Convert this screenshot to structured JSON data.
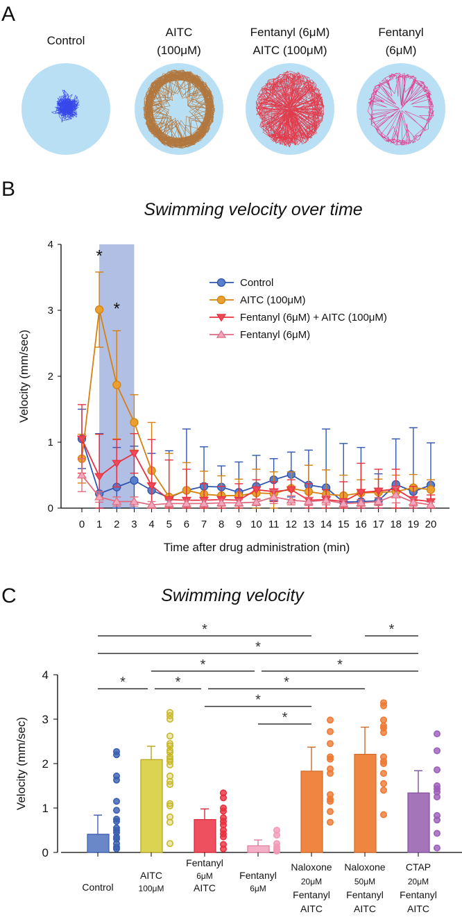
{
  "panels": {
    "a": "A",
    "b": "B",
    "c": "C"
  },
  "panel_a": {
    "arenas": [
      {
        "title": [
          "Control"
        ],
        "color": "#1f2ee8"
      },
      {
        "title": [
          "AITC",
          "(100μM)"
        ],
        "color": "#b0651e"
      },
      {
        "title": [
          "Fentanyl (6μM)",
          "AITC (100μM)"
        ],
        "color": "#e8202e"
      },
      {
        "title": [
          "Fentanyl",
          "(6μM)"
        ],
        "color": "#e8207a"
      }
    ],
    "arena_fill": "#b9dff4"
  },
  "chart_data": [
    {
      "type": "line",
      "title": "Swimming velocity over time",
      "xlabel": "Time after drug administration (min)",
      "ylabel": "Velocity (mm/sec)",
      "x": [
        0,
        1,
        2,
        3,
        4,
        5,
        6,
        7,
        8,
        9,
        10,
        11,
        12,
        13,
        14,
        15,
        16,
        17,
        18,
        19,
        20
      ],
      "xlim": [
        0,
        20
      ],
      "ylim": [
        0,
        4
      ],
      "yticks": [
        0,
        1,
        2,
        3,
        4
      ],
      "shaded_region": {
        "x": [
          1,
          3
        ],
        "color": "#a9b8e2"
      },
      "annotations": [
        {
          "x": 1,
          "y": 3.85,
          "text": "*"
        },
        {
          "x": 2,
          "y": 3.05,
          "text": "*"
        }
      ],
      "legend": "top-right",
      "series": [
        {
          "name": "Control",
          "color": "#2f55b0",
          "fill": "#5a7fcc",
          "marker": "circle",
          "values": [
            1.05,
            0.22,
            0.32,
            0.42,
            0.27,
            0.16,
            0.27,
            0.33,
            0.32,
            0.24,
            0.33,
            0.43,
            0.51,
            0.35,
            0.31,
            0.09,
            0.1,
            0.11,
            0.36,
            0.25,
            0.35
          ],
          "error": [
            0.45,
            0.91,
            0.6,
            0.52,
            0.56,
            0.71,
            0.93,
            0.6,
            0.32,
            0.46,
            0.47,
            0.32,
            0.34,
            0.53,
            0.89,
            0.89,
            0.82,
            0.41,
            0.69,
            0.97,
            0.64
          ]
        },
        {
          "name": "AITC (100μM)",
          "color": "#d5800f",
          "fill": "#e8a030",
          "marker": "circle",
          "values": [
            0.75,
            3.01,
            1.87,
            1.3,
            0.57,
            0.17,
            0.27,
            0.21,
            0.19,
            0.19,
            0.23,
            0.22,
            0.3,
            0.25,
            0.21,
            0.19,
            0.23,
            0.24,
            0.25,
            0.31,
            0.28
          ],
          "error": [
            0.37,
            0.57,
            0.82,
            0.42,
            0.73,
            0.66,
            0.42,
            0.35,
            0.3,
            0.25,
            0.36,
            0.33,
            0.25,
            0.4,
            0.37,
            0.31,
            0.2,
            0.2,
            0.25,
            0.2,
            0.15
          ]
        },
        {
          "name": "Fentanyl (6μM) + AITC (100μM)",
          "color": "#e8303f",
          "fill": "#ee4a56",
          "marker": "triangle-down",
          "values": [
            1.05,
            0.48,
            0.68,
            0.83,
            0.34,
            0.13,
            0.12,
            0.12,
            0.13,
            0.12,
            0.28,
            0.25,
            0.28,
            0.12,
            0.13,
            0.1,
            0.24,
            0.26,
            0.29,
            0.13,
            0.1
          ],
          "error": [
            0.52,
            0.64,
            0.36,
            0.3,
            0.7,
            0.6,
            0.47,
            0.25,
            0.2,
            0.25,
            0.15,
            0.15,
            0.15,
            0.25,
            0.15,
            0.3,
            0.44,
            0.33,
            0.3,
            0.2,
            0.1
          ]
        },
        {
          "name": "Fentanyl (6μM)",
          "color": "#e06a7e",
          "fill": "#f2a6bc",
          "marker": "triangle-up",
          "values": [
            0.5,
            0.17,
            0.1,
            0.1,
            0.05,
            0.07,
            0.07,
            0.07,
            0.08,
            0.08,
            0.09,
            0.17,
            0.12,
            0.1,
            0.12,
            0.07,
            0.08,
            0.1,
            0.2,
            0.09,
            0.05
          ],
          "error": [
            0.25,
            0.08,
            0.07,
            0.07,
            0.05,
            0.05,
            0.05,
            0.05,
            0.05,
            0.05,
            0.05,
            0.1,
            0.07,
            0.06,
            0.07,
            0.05,
            0.05,
            0.06,
            0.12,
            0.06,
            0.04
          ]
        }
      ]
    },
    {
      "type": "bar",
      "title": "Swimming velocity",
      "ylabel": "Velocity (mm/sec)",
      "ylim": [
        0,
        4
      ],
      "yticks": [
        0,
        1,
        2,
        3,
        4
      ],
      "categories": [
        {
          "lines": [
            "Control"
          ],
          "color": "#6a87c8",
          "edge": "#3a5fb0",
          "dot": "#3a5fb0",
          "mean": 0.41,
          "error": 0.43,
          "points": [
            2.27,
            2.2,
            1.72,
            1.63,
            1.15,
            0.95,
            0.75,
            0.7,
            0.55,
            0.5,
            0.45,
            0.35,
            0.3,
            0.2,
            0.12,
            0.08
          ]
        },
        {
          "lines": [
            "AITC",
            "100μM"
          ],
          "color": "#dbd452",
          "edge": "#b5a21a",
          "dot": "#c8b624",
          "mean": 2.09,
          "error": 0.3,
          "points": [
            3.15,
            3.08,
            3.0,
            2.62,
            2.45,
            2.4,
            2.3,
            2.25,
            2.15,
            2.1,
            2.05,
            1.97,
            1.72,
            1.6,
            1.53,
            1.1,
            1.05,
            0.8,
            0.68,
            0.2
          ]
        },
        {
          "lines": [
            "Fentanyl",
            "6μM",
            "AITC"
          ],
          "color": "#ee5060",
          "edge": "#d8283a",
          "dot": "#e8303f",
          "mean": 0.74,
          "error": 0.24,
          "points": [
            1.34,
            1.23,
            1.0,
            0.93,
            0.78,
            0.7,
            0.62,
            0.5,
            0.42,
            0.35,
            0.18,
            0.08
          ]
        },
        {
          "lines": [
            "Fentanyl",
            "6μM"
          ],
          "color": "#f4b0c6",
          "edge": "#e07a98",
          "dot": "#f29ab6",
          "mean": 0.15,
          "error": 0.13,
          "points": [
            0.5,
            0.39,
            0.2,
            0.12,
            0.07,
            0.03
          ]
        },
        {
          "lines": [
            "Naloxone",
            "20μM",
            "Fentanyl",
            "AITC"
          ],
          "color": "#ee8540",
          "edge": "#d06a28",
          "dot": "#ee7a34",
          "mean": 1.83,
          "error": 0.54,
          "points": [
            2.98,
            2.72,
            2.45,
            2.15,
            2.1,
            1.88,
            1.78,
            1.3,
            1.2,
            1.15,
            0.92,
            0.68
          ]
        },
        {
          "lines": [
            "Naloxone",
            "50μM",
            "Fentanyl",
            "AITC"
          ],
          "color": "#ee8540",
          "edge": "#d06a28",
          "dot": "#ee7a34",
          "mean": 2.21,
          "error": 0.61,
          "points": [
            3.37,
            3.3,
            2.98,
            2.85,
            2.8,
            2.7,
            2.15,
            2.05,
            2.0,
            1.78,
            1.55,
            1.4,
            0.85
          ]
        },
        {
          "lines": [
            "CTAP",
            "20μM",
            "Fentanyl",
            "AITC"
          ],
          "color": "#a475b8",
          "edge": "#8050a0",
          "dot": "#9a5fb8",
          "mean": 1.34,
          "error": 0.5,
          "points": [
            2.67,
            2.29,
            1.86,
            1.5,
            1.43,
            1.36,
            1.25,
            0.83,
            0.73,
            0.43,
            0.1
          ]
        }
      ],
      "significance": [
        {
          "from": 0,
          "to": 4,
          "level": 1,
          "text": "*"
        },
        {
          "from": 5,
          "to": 6,
          "level": 1,
          "text": "*"
        },
        {
          "from": 0,
          "to": 6,
          "level": 2,
          "text": "*"
        },
        {
          "from": 1,
          "to": 3,
          "level": 3,
          "text": "*"
        },
        {
          "from": 3,
          "to": 6,
          "level": 3,
          "text": "*"
        },
        {
          "from": 0,
          "to": 1,
          "level": 4,
          "text": "*"
        },
        {
          "from": 1,
          "to": 2,
          "level": 4,
          "text": "*"
        },
        {
          "from": 2,
          "to": 5,
          "level": 4,
          "text": "*"
        },
        {
          "from": 2,
          "to": 4,
          "level": 5,
          "text": "*"
        },
        {
          "from": 3,
          "to": 4,
          "level": 6,
          "text": "*"
        }
      ]
    }
  ]
}
